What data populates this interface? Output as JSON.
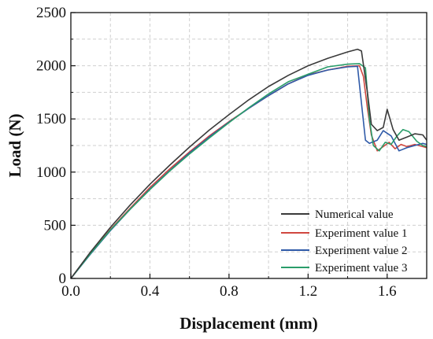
{
  "chart_data": {
    "type": "line",
    "xlabel": "Displacement (mm)",
    "ylabel": "Load (N)",
    "xlim": [
      0.0,
      1.8
    ],
    "ylim": [
      0,
      2500
    ],
    "xticks": [
      0.0,
      0.4,
      0.8,
      1.2,
      1.6
    ],
    "yticks": [
      0,
      500,
      1000,
      1500,
      2000,
      2500
    ],
    "xtick_labels": [
      "0.0",
      "0.4",
      "0.8",
      "1.2",
      "1.6"
    ],
    "ytick_labels": [
      "0",
      "500",
      "1000",
      "1500",
      "2000",
      "2500"
    ],
    "grid": true,
    "legend_position": "bottom-right",
    "series": [
      {
        "name": "Numerical value",
        "color": "#3a3a3a",
        "x": [
          0,
          0.1,
          0.2,
          0.3,
          0.4,
          0.5,
          0.6,
          0.7,
          0.8,
          0.9,
          1.0,
          1.1,
          1.2,
          1.3,
          1.4,
          1.45,
          1.47,
          1.5,
          1.52,
          1.55,
          1.58,
          1.6,
          1.63,
          1.66,
          1.7,
          1.74,
          1.78,
          1.8
        ],
        "y": [
          0,
          250,
          480,
          690,
          885,
          1065,
          1235,
          1395,
          1540,
          1680,
          1805,
          1910,
          2000,
          2070,
          2130,
          2155,
          2140,
          1750,
          1450,
          1390,
          1420,
          1590,
          1400,
          1300,
          1330,
          1360,
          1350,
          1300
        ]
      },
      {
        "name": "Experiment value 1",
        "color": "#d0473f",
        "x": [
          0,
          0.1,
          0.2,
          0.3,
          0.4,
          0.5,
          0.6,
          0.7,
          0.8,
          0.9,
          1.0,
          1.1,
          1.2,
          1.3,
          1.4,
          1.46,
          1.48,
          1.5,
          1.52,
          1.55,
          1.58,
          1.61,
          1.64,
          1.67,
          1.7,
          1.74,
          1.78,
          1.8
        ],
        "y": [
          0,
          240,
          460,
          660,
          855,
          1030,
          1190,
          1340,
          1475,
          1600,
          1720,
          1830,
          1915,
          1960,
          1995,
          2000,
          1900,
          1600,
          1350,
          1200,
          1240,
          1280,
          1220,
          1260,
          1240,
          1260,
          1240,
          1230
        ]
      },
      {
        "name": "Experiment value 2",
        "color": "#2f5aa8",
        "x": [
          0,
          0.1,
          0.2,
          0.3,
          0.4,
          0.5,
          0.6,
          0.7,
          0.8,
          0.9,
          1.0,
          1.1,
          1.2,
          1.3,
          1.4,
          1.45,
          1.47,
          1.49,
          1.51,
          1.55,
          1.58,
          1.62,
          1.66,
          1.7,
          1.74,
          1.78,
          1.8
        ],
        "y": [
          0,
          230,
          450,
          650,
          840,
          1015,
          1180,
          1330,
          1470,
          1600,
          1720,
          1830,
          1910,
          1960,
          1990,
          1995,
          1650,
          1300,
          1270,
          1300,
          1390,
          1340,
          1200,
          1230,
          1250,
          1270,
          1260
        ]
      },
      {
        "name": "Experiment value 3",
        "color": "#2a9d6a",
        "x": [
          0,
          0.1,
          0.2,
          0.3,
          0.4,
          0.5,
          0.6,
          0.7,
          0.8,
          0.9,
          1.0,
          1.1,
          1.2,
          1.3,
          1.4,
          1.46,
          1.49,
          1.51,
          1.53,
          1.56,
          1.59,
          1.62,
          1.65,
          1.68,
          1.71,
          1.75,
          1.78,
          1.8
        ],
        "y": [
          0,
          235,
          455,
          650,
          835,
          1010,
          1170,
          1320,
          1465,
          1605,
          1735,
          1850,
          1920,
          1990,
          2015,
          2020,
          1980,
          1500,
          1250,
          1200,
          1280,
          1260,
          1340,
          1400,
          1380,
          1290,
          1250,
          1240
        ]
      }
    ]
  }
}
